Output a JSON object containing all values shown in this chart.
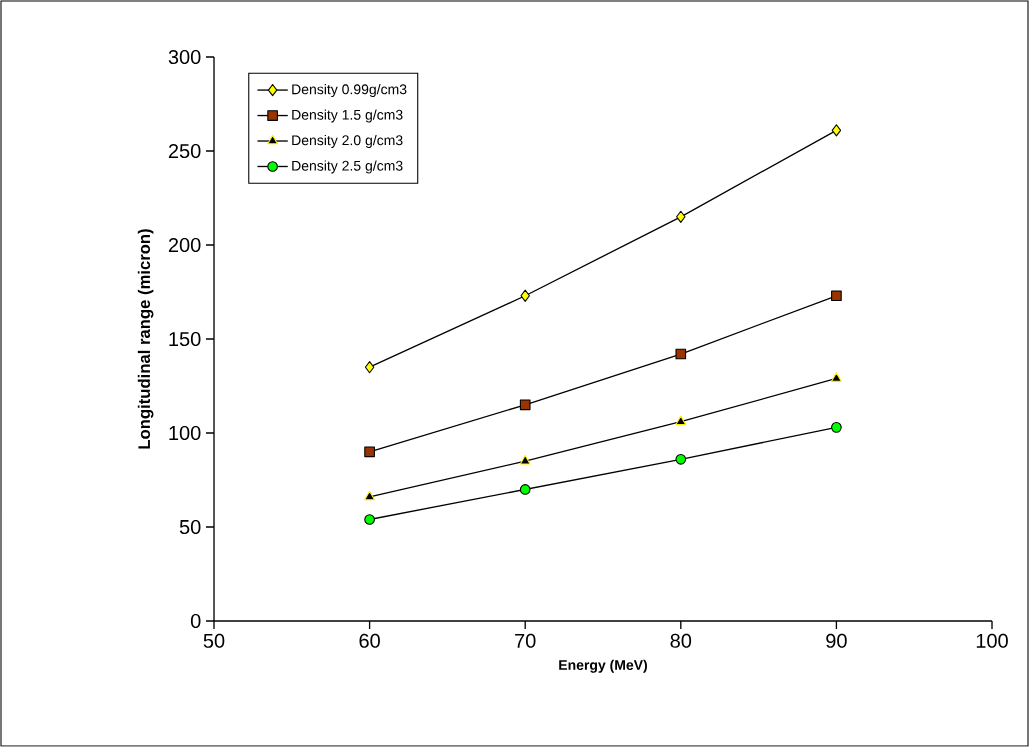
{
  "chart_data": {
    "type": "line",
    "xlabel": "Energy (MeV)",
    "ylabel": "Longitudinal range (micron)",
    "x": [
      60,
      70,
      80,
      90
    ],
    "series": [
      {
        "name": "Density 0.99g/cm3",
        "color": "#ffff00",
        "marker": "diamond",
        "values": [
          135,
          173,
          215,
          261
        ]
      },
      {
        "name": "Density 1.5 g/cm3",
        "color": "#993300",
        "marker": "square",
        "values": [
          90,
          115,
          142,
          173
        ]
      },
      {
        "name": "Density 2.0 g/cm3",
        "color": "#000000",
        "marker": "triangle",
        "values": [
          66,
          85,
          106,
          129
        ]
      },
      {
        "name": "Density 2.5 g/cm3",
        "color": "#00ff00",
        "marker": "circle",
        "values": [
          54,
          70,
          86,
          103
        ]
      }
    ],
    "xlim": [
      50,
      100
    ],
    "xticks": [
      50,
      60,
      70,
      80,
      90,
      100
    ],
    "ylim": [
      0,
      300
    ],
    "yticks": [
      0,
      50,
      100,
      150,
      200,
      250,
      300
    ],
    "grid": false,
    "legend": "top left",
    "line_style": "solid"
  }
}
